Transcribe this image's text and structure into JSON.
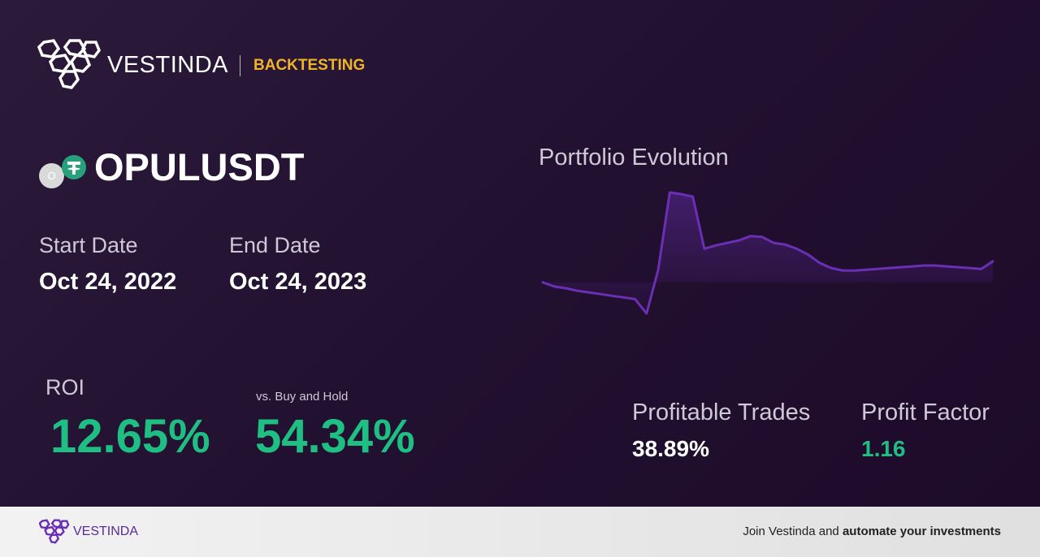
{
  "header": {
    "brand": "VESTINDA",
    "section": "BACKTESTING"
  },
  "token": {
    "icon_letter": "O",
    "symbol": "OPULUSDT"
  },
  "dates": {
    "start_label": "Start Date",
    "start_value": "Oct 24, 2022",
    "end_label": "End Date",
    "end_value": "Oct 24, 2023"
  },
  "stats": {
    "roi_label": "ROI",
    "roi_value": "12.65%",
    "bh_label": "vs. Buy and Hold",
    "bh_value": "54.34%",
    "profitable_label": "Profitable Trades",
    "profitable_value": "38.89%",
    "factor_label": "Profit Factor",
    "factor_value": "1.16"
  },
  "chart_data": {
    "type": "line",
    "title": "Portfolio Evolution",
    "color": "#6a2fb5",
    "values": [
      55,
      50,
      48,
      45,
      43,
      41,
      39,
      37,
      35,
      18,
      70,
      162,
      160,
      157,
      95,
      99,
      102,
      105,
      110,
      109,
      102,
      100,
      95,
      88,
      78,
      72,
      69,
      69,
      70,
      71,
      72,
      73,
      74,
      75,
      75,
      74,
      73,
      72,
      71,
      80
    ]
  },
  "footer": {
    "brand": "VESTINDA",
    "cta_plain": "Join Vestinda and",
    "cta_bold": "automate your investments"
  }
}
